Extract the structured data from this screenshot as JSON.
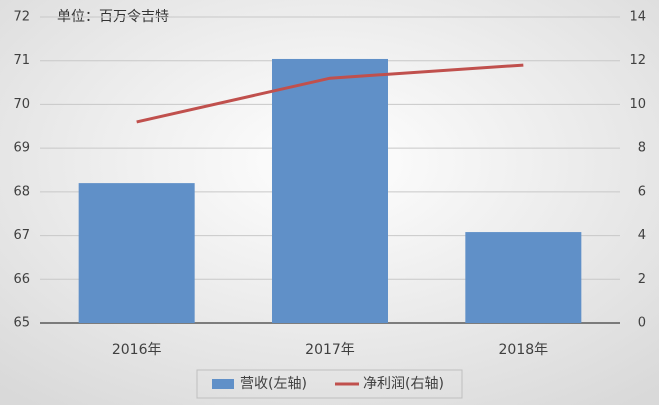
{
  "chart_data": {
    "type": "bar-line",
    "annotation": "单位：百万令吉特",
    "categories": [
      "2016年",
      "2017年",
      "2018年"
    ],
    "series": [
      {
        "name": "营收(左轴)",
        "type": "bar",
        "axis": "y",
        "color": "#6090c8",
        "values": [
          68.2,
          71.04,
          67.08
        ]
      },
      {
        "name": "净利润(右轴)",
        "type": "line",
        "axis": "y2",
        "color": "#c0504d",
        "values": [
          9.2,
          11.2,
          11.8
        ]
      }
    ],
    "ylim": [
      65,
      72
    ],
    "yticks": [
      65,
      66,
      67,
      68,
      69,
      70,
      71,
      72
    ],
    "y2lim": [
      0,
      14
    ],
    "y2ticks": [
      0,
      2,
      4,
      6,
      8,
      10,
      12,
      14
    ],
    "grid": true
  }
}
